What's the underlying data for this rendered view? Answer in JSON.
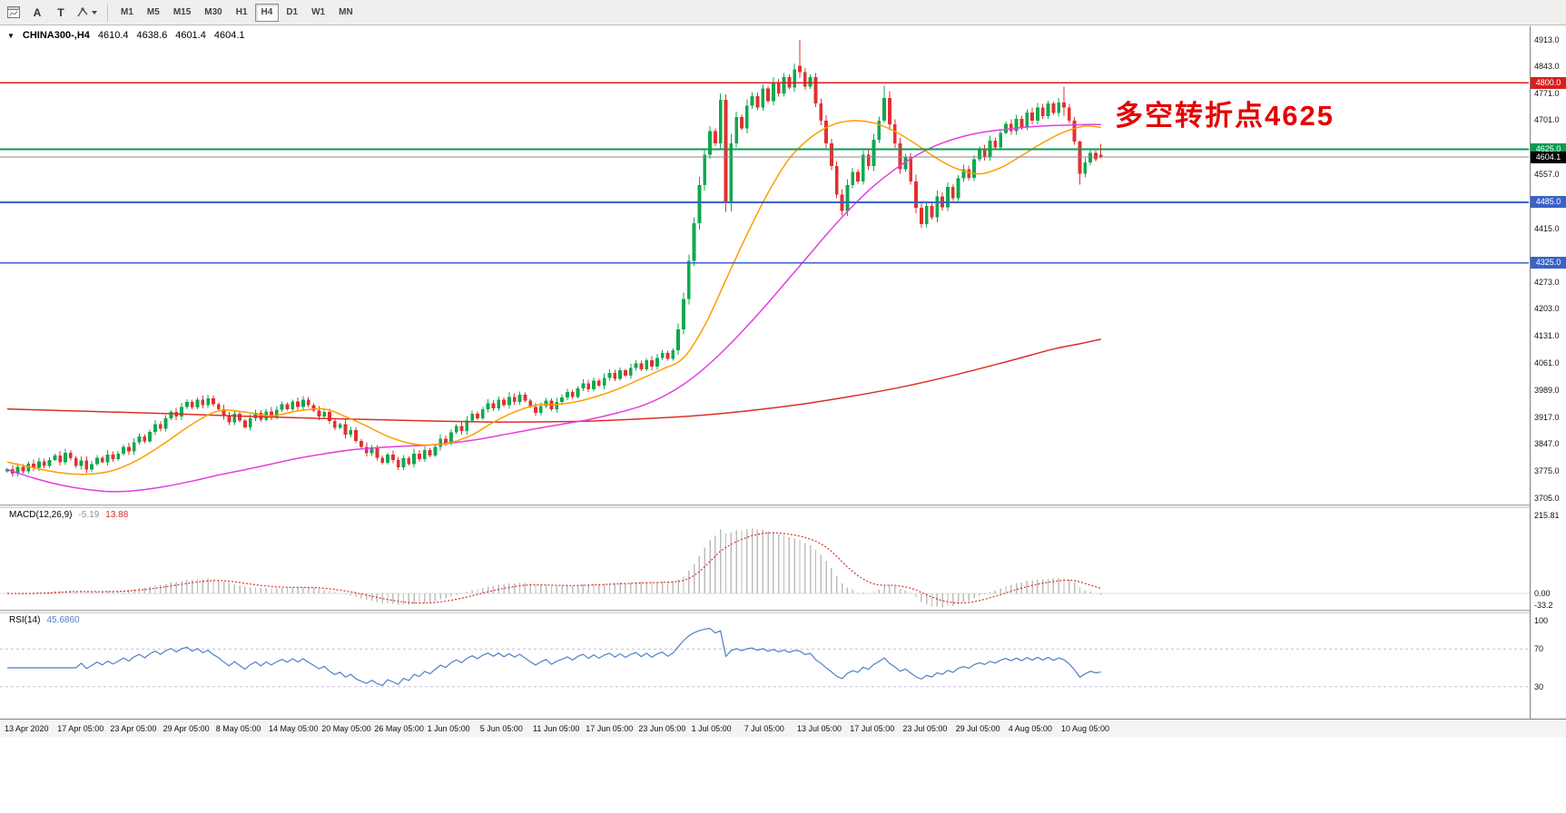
{
  "toolbar": {
    "buttons": [
      {
        "id": "chart-window",
        "label": ""
      },
      {
        "id": "cursor",
        "label": "A"
      },
      {
        "id": "text-tool",
        "label": "T"
      },
      {
        "id": "shapes",
        "label": ""
      }
    ],
    "timeframes": [
      "M1",
      "M5",
      "M15",
      "M30",
      "H1",
      "H4",
      "D1",
      "W1",
      "MN"
    ],
    "active_timeframe": "H4"
  },
  "chart_meta": {
    "collapse_arrow": "▼",
    "symbol_label": "CHINA300-,H4",
    "ohlc": {
      "open": "4610.4",
      "high": "4638.6",
      "low": "4601.4",
      "close": "4604.1"
    },
    "annotation": {
      "text": "多空转折点4625",
      "color": "#e60000"
    }
  },
  "chart_data": {
    "type": "candlestick",
    "symbol": "CHINA300-",
    "timeframe": "H4",
    "ylim": [
      3705.0,
      4913.0
    ],
    "price_axis_labels": [
      "4913.0",
      "4843.0",
      "4771.0",
      "4701.0",
      "4557.0",
      "4415.0",
      "4273.0",
      "4203.0",
      "4131.0",
      "4061.0",
      "3989.0",
      "3917.0",
      "3847.0",
      "3775.0",
      "3705.0"
    ],
    "time_labels": [
      "13 Apr 2020",
      "17 Apr 05:00",
      "23 Apr 05:00",
      "29 Apr 05:00",
      "8 May 05:00",
      "14 May 05:00",
      "20 May 05:00",
      "26 May 05:00",
      "1 Jun 05:00",
      "5 Jun 05:00",
      "11 Jun 05:00",
      "17 Jun 05:00",
      "23 Jun 05:00",
      "1 Jul 05:00",
      "7 Jul 05:00",
      "13 Jul 05:00",
      "17 Jul 05:00",
      "23 Jul 05:00",
      "29 Jul 05:00",
      "4 Aug 05:00",
      "10 Aug 05:00"
    ],
    "first_open": 3775,
    "closes": [
      3782,
      3770,
      3788,
      3775,
      3796,
      3785,
      3802,
      3790,
      3806,
      3818,
      3800,
      3825,
      3810,
      3790,
      3804,
      3780,
      3795,
      3812,
      3800,
      3820,
      3808,
      3822,
      3840,
      3828,
      3852,
      3868,
      3855,
      3880,
      3900,
      3888,
      3915,
      3932,
      3920,
      3945,
      3958,
      3944,
      3965,
      3950,
      3968,
      3952,
      3940,
      3922,
      3905,
      3928,
      3910,
      3892,
      3915,
      3930,
      3912,
      3934,
      3920,
      3938,
      3952,
      3940,
      3960,
      3946,
      3965,
      3950,
      3936,
      3920,
      3932,
      3908,
      3890,
      3900,
      3872,
      3884,
      3856,
      3840,
      3824,
      3836,
      3812,
      3798,
      3820,
      3805,
      3786,
      3810,
      3795,
      3822,
      3808,
      3832,
      3818,
      3840,
      3862,
      3850,
      3878,
      3895,
      3882,
      3910,
      3928,
      3915,
      3940,
      3955,
      3942,
      3965,
      3950,
      3972,
      3958,
      3978,
      3962,
      3945,
      3930,
      3948,
      3962,
      3940,
      3958,
      3970,
      3985,
      3972,
      3995,
      4008,
      3992,
      4015,
      4002,
      4022,
      4035,
      4020,
      4042,
      4028,
      4048,
      4060,
      4045,
      4068,
      4052,
      4075,
      4088,
      4072,
      4095,
      4150,
      4230,
      4330,
      4430,
      4530,
      4610,
      4672,
      4640,
      4755,
      4482,
      4640,
      4710,
      4680,
      4740,
      4765,
      4735,
      4785,
      4752,
      4800,
      4772,
      4815,
      4788,
      4835,
      4828,
      4790,
      4815,
      4745,
      4700,
      4640,
      4580,
      4505,
      4462,
      4530,
      4565,
      4540,
      4610,
      4580,
      4650,
      4700,
      4760,
      4690,
      4640,
      4572,
      4605,
      4540,
      4470,
      4428,
      4475,
      4445,
      4500,
      4472,
      4525,
      4495,
      4548,
      4572,
      4550,
      4598,
      4625,
      4605,
      4648,
      4630,
      4668,
      4692,
      4672,
      4705,
      4682,
      4722,
      4700,
      4735,
      4712,
      4745,
      4720,
      4748,
      4735,
      4700,
      4645,
      4560,
      4590,
      4615,
      4598,
      4604.1
    ],
    "candle_overrides": {
      "136": [
        4755,
        4770,
        4460,
        4482
      ],
      "150": [
        4845,
        4913,
        4812,
        4828
      ],
      "166": [
        4700,
        4792,
        4694,
        4760
      ],
      "200": [
        4748,
        4790,
        4712,
        4735
      ],
      "203": [
        4645,
        4648,
        4532,
        4560
      ],
      "207": [
        4610.4,
        4638.6,
        4601.4,
        4604.1
      ]
    },
    "colors": {
      "up": "#0fa84f",
      "down": "#e03131"
    },
    "hlines": [
      {
        "price": 4800.0,
        "label": "4800.0",
        "color": "#d91e1e",
        "width": 1.8
      },
      {
        "price": 4625.0,
        "label": "4625.0",
        "color": "#089d50",
        "width": 2.2
      },
      {
        "price": 4485.0,
        "label": "4485.0",
        "color": "#3a62c8",
        "width": 1.8
      },
      {
        "price": 4325.0,
        "label": "4325.0",
        "color": "#3a62c8",
        "width": 1.8
      }
    ],
    "current_price": {
      "price": 4604.1,
      "label": "4604.1",
      "line_color": "#888888",
      "badge_color": "#000000"
    },
    "ma_lines": {
      "fast": {
        "color": "#ff9d00",
        "points": [
          [
            0,
            3800
          ],
          [
            5,
            3785
          ],
          [
            10,
            3772
          ],
          [
            15,
            3768
          ],
          [
            20,
            3778
          ],
          [
            25,
            3808
          ],
          [
            30,
            3852
          ],
          [
            35,
            3900
          ],
          [
            40,
            3935
          ],
          [
            45,
            3932
          ],
          [
            50,
            3922
          ],
          [
            55,
            3935
          ],
          [
            60,
            3940
          ],
          [
            64,
            3920
          ],
          [
            68,
            3895
          ],
          [
            72,
            3868
          ],
          [
            76,
            3850
          ],
          [
            80,
            3845
          ],
          [
            84,
            3852
          ],
          [
            88,
            3872
          ],
          [
            92,
            3905
          ],
          [
            96,
            3932
          ],
          [
            100,
            3950
          ],
          [
            104,
            3952
          ],
          [
            108,
            3960
          ],
          [
            112,
            3975
          ],
          [
            116,
            3995
          ],
          [
            120,
            4020
          ],
          [
            124,
            4045
          ],
          [
            128,
            4075
          ],
          [
            132,
            4160
          ],
          [
            136,
            4280
          ],
          [
            140,
            4400
          ],
          [
            144,
            4510
          ],
          [
            148,
            4600
          ],
          [
            152,
            4655
          ],
          [
            156,
            4688
          ],
          [
            160,
            4700
          ],
          [
            164,
            4694
          ],
          [
            168,
            4672
          ],
          [
            172,
            4638
          ],
          [
            176,
            4600
          ],
          [
            180,
            4572
          ],
          [
            184,
            4560
          ],
          [
            188,
            4576
          ],
          [
            192,
            4608
          ],
          [
            196,
            4642
          ],
          [
            200,
            4670
          ],
          [
            204,
            4686
          ],
          [
            207,
            4682
          ]
        ]
      },
      "mid": {
        "color": "#e33ee3",
        "points": [
          [
            0,
            3780
          ],
          [
            5,
            3758
          ],
          [
            10,
            3740
          ],
          [
            15,
            3728
          ],
          [
            20,
            3722
          ],
          [
            25,
            3726
          ],
          [
            30,
            3736
          ],
          [
            35,
            3750
          ],
          [
            40,
            3766
          ],
          [
            45,
            3780
          ],
          [
            50,
            3795
          ],
          [
            55,
            3810
          ],
          [
            60,
            3822
          ],
          [
            65,
            3832
          ],
          [
            70,
            3838
          ],
          [
            75,
            3842
          ],
          [
            80,
            3845
          ],
          [
            85,
            3852
          ],
          [
            90,
            3862
          ],
          [
            95,
            3875
          ],
          [
            100,
            3888
          ],
          [
            105,
            3900
          ],
          [
            110,
            3912
          ],
          [
            115,
            3928
          ],
          [
            120,
            3948
          ],
          [
            124,
            3972
          ],
          [
            128,
            4005
          ],
          [
            132,
            4048
          ],
          [
            136,
            4100
          ],
          [
            140,
            4158
          ],
          [
            144,
            4220
          ],
          [
            148,
            4285
          ],
          [
            152,
            4350
          ],
          [
            156,
            4415
          ],
          [
            160,
            4475
          ],
          [
            164,
            4528
          ],
          [
            168,
            4572
          ],
          [
            172,
            4608
          ],
          [
            176,
            4636
          ],
          [
            180,
            4655
          ],
          [
            184,
            4668
          ],
          [
            188,
            4676
          ],
          [
            192,
            4682
          ],
          [
            196,
            4686
          ],
          [
            200,
            4688
          ],
          [
            204,
            4690
          ],
          [
            207,
            4690
          ]
        ]
      },
      "slow": {
        "color": "#d93025",
        "points": [
          [
            0,
            3940
          ],
          [
            15,
            3934
          ],
          [
            30,
            3928
          ],
          [
            45,
            3921
          ],
          [
            60,
            3915
          ],
          [
            75,
            3910
          ],
          [
            90,
            3906
          ],
          [
            100,
            3906
          ],
          [
            110,
            3908
          ],
          [
            120,
            3914
          ],
          [
            130,
            3922
          ],
          [
            140,
            3935
          ],
          [
            150,
            3952
          ],
          [
            160,
            3974
          ],
          [
            170,
            4000
          ],
          [
            180,
            4032
          ],
          [
            190,
            4068
          ],
          [
            198,
            4098
          ],
          [
            203,
            4112
          ],
          [
            207,
            4124
          ]
        ]
      }
    },
    "indicators": {
      "macd": {
        "title": "MACD(12,26,9)",
        "value": "-5.19",
        "signal_value": "13.88",
        "params": [
          12,
          26,
          9
        ],
        "axis_labels": [
          "215.81",
          "0.00",
          "-33.2"
        ],
        "axis_values": [
          215.81,
          0,
          -33.2
        ],
        "histogram_color": "#bdbdbd",
        "signal_color": "#d93025"
      },
      "rsi": {
        "title": "RSI(14)",
        "value": "45.6860",
        "period": 14,
        "axis_labels": [
          "100",
          "70",
          "30"
        ],
        "axis_values": [
          100,
          70,
          30
        ],
        "levels": [
          70,
          30
        ],
        "line_color": "#4f81c7",
        "level_color": "#c0c0d8"
      }
    }
  }
}
